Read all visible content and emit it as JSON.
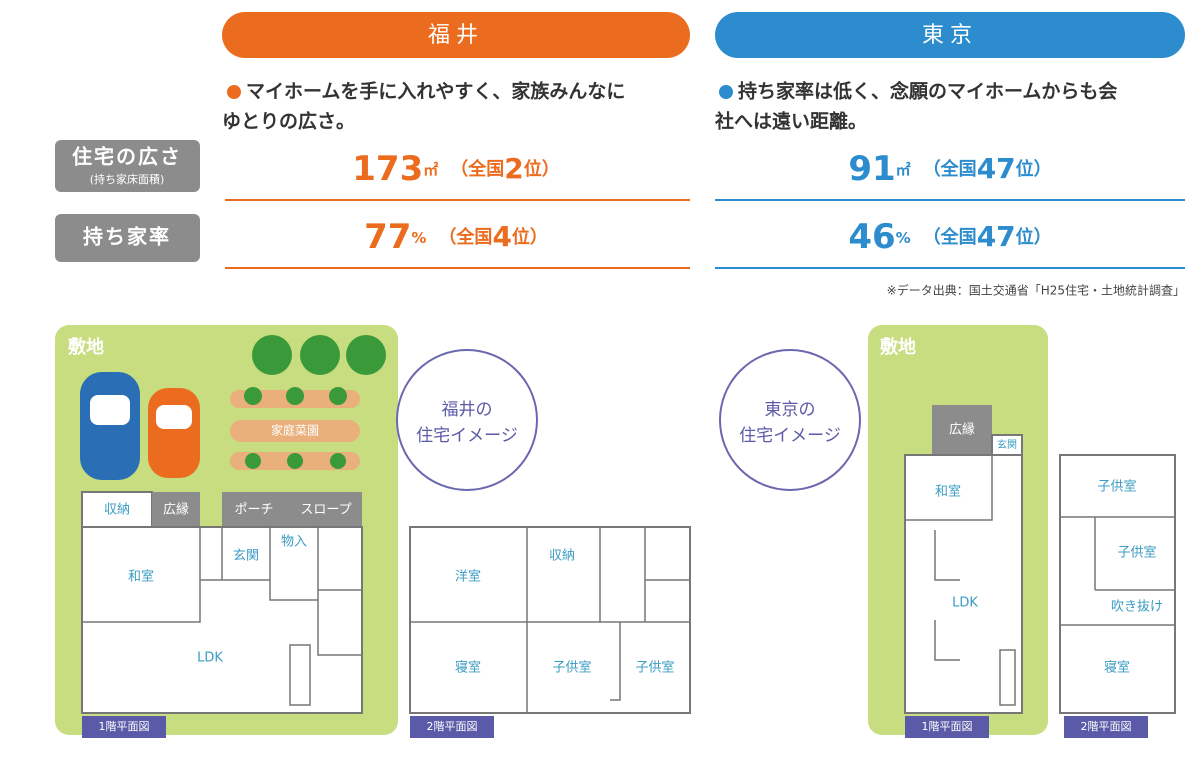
{
  "regions": [
    {
      "name": "福井",
      "description": [
        "マイホームを手に入れやすく、家族みんなに",
        "ゆとりの広さ。"
      ],
      "stats": [
        {
          "value": "173",
          "unit": "㎡",
          "rank_open": "（全国",
          "rank": "2",
          "rank_close": "位）"
        },
        {
          "value": "77",
          "unit": "%",
          "rank_open": "（全国",
          "rank": "4",
          "rank_close": "位）"
        }
      ]
    },
    {
      "name": "東京",
      "description": [
        "持ち家率は低く、念願のマイホームからも会",
        "社へは遠い距離。"
      ],
      "stats": [
        {
          "value": "91",
          "unit": "㎡",
          "rank_open": "（全国",
          "rank": "47",
          "rank_close": "位）"
        },
        {
          "value": "46",
          "unit": "%",
          "rank_open": "（全国",
          "rank": "47",
          "rank_close": "位）"
        }
      ]
    }
  ],
  "row_labels": [
    {
      "label": "住宅の広さ",
      "sub": "(持ち家床面積)"
    },
    {
      "label": "持ち家率"
    }
  ],
  "source": "※データ出典：国土交通省「H25住宅・土地統計調査」",
  "fukui_image": {
    "site": "敷地",
    "garden": "家庭菜園",
    "caption": [
      "福井の",
      "住宅イメージ"
    ],
    "floor1": {
      "label": "1階平面図",
      "rooms": [
        "収納",
        "広縁",
        "ポーチ",
        "スロープ",
        "和室",
        "玄関",
        "物入",
        "LDK"
      ]
    },
    "floor2": {
      "label": "2階平面図",
      "rooms": [
        "洋室",
        "収納",
        "寝室",
        "子供室",
        "子供室"
      ]
    }
  },
  "tokyo_image": {
    "site": "敷地",
    "caption": [
      "東京の",
      "住宅イメージ"
    ],
    "floor1": {
      "label": "1階平面図",
      "rooms": [
        "広縁",
        "玄関",
        "和室",
        "LDK"
      ]
    },
    "floor2": {
      "label": "2階平面図",
      "rooms": [
        "子供室",
        "子供室",
        "吹き抜け",
        "寝室"
      ]
    }
  }
}
